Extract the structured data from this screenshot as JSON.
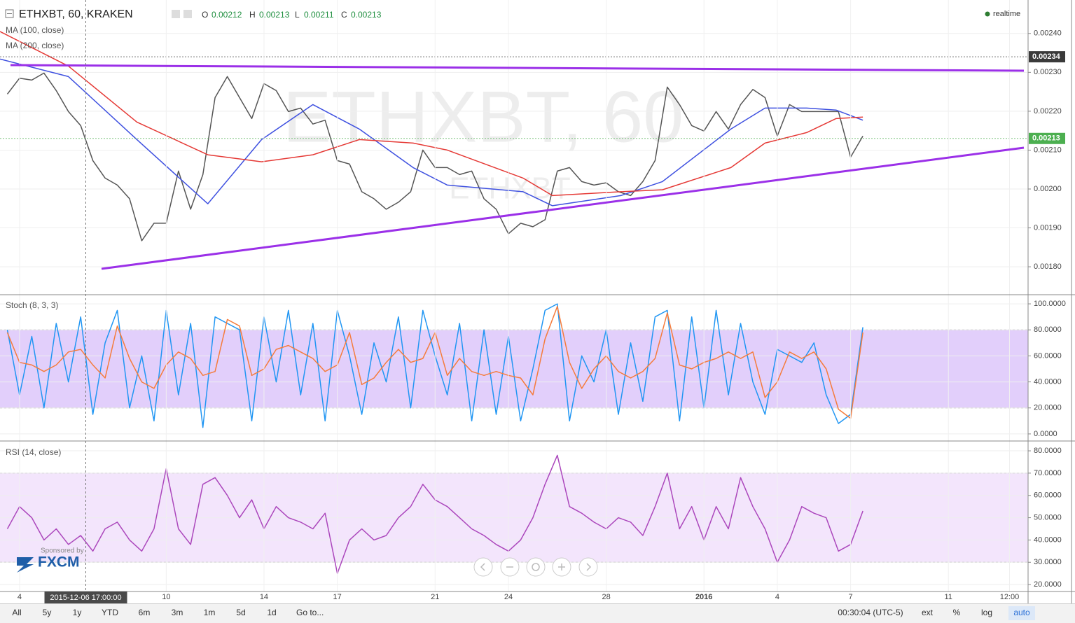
{
  "header": {
    "ohlc": [
      {
        "key": "O",
        "value": 0.00212
      },
      {
        "key": "H",
        "value": 0.00213
      },
      {
        "key": "L",
        "value": 0.00211
      },
      {
        "key": "C",
        "value": 0.00213
      }
    ],
    "status": "realtime"
  },
  "watermark": {
    "main": "ETHXBT, 60",
    "sub": "ETHXBT"
  },
  "sponsor": {
    "text": "Sponsored by",
    "brand": "FXCM"
  },
  "toolbar": {
    "ranges": [
      "All",
      "5y",
      "1y",
      "YTD",
      "6m",
      "3m",
      "1m",
      "5d",
      "1d"
    ],
    "goto": "Go to...",
    "clock": "00:30:04 (UTC-5)",
    "options": [
      "ext",
      "%",
      "log",
      "auto"
    ]
  },
  "chart_data": [
    {
      "type": "line",
      "title": "ETHXBT, 60, KRAKEN",
      "color": "#555555",
      "xlim": [
        -0.8,
        41.26
      ],
      "xticks": [
        {
          "value": 0,
          "label": "4"
        },
        {
          "value": 6,
          "label": "10"
        },
        {
          "value": 10,
          "label": "14"
        },
        {
          "value": 13,
          "label": "17"
        },
        {
          "value": 17,
          "label": "21"
        },
        {
          "value": 20,
          "label": "24"
        },
        {
          "value": 24,
          "label": "28"
        },
        {
          "value": 28,
          "label": "2016"
        },
        {
          "value": 31,
          "label": "4"
        },
        {
          "value": 34,
          "label": "7"
        },
        {
          "value": 38,
          "label": "11"
        },
        {
          "value": 40.5,
          "label": "12:00"
        }
      ],
      "crosshair": {
        "value": 2.71,
        "label": "2015-12-06 17:00:00"
      },
      "ylim": [
        0.00173,
        0.002486
      ],
      "yticks": [
        {
          "value": 0.0018,
          "label": "0.00180"
        },
        {
          "value": 0.0019,
          "label": "0.00190"
        },
        {
          "value": 0.002,
          "label": "0.00200"
        },
        {
          "value": 0.0021,
          "label": "0.00210"
        },
        {
          "value": 0.0022,
          "label": "0.00220"
        },
        {
          "value": 0.0023,
          "label": "0.00230"
        },
        {
          "value": 0.0024,
          "label": "0.00240"
        }
      ],
      "markers": [
        {
          "value": 0.00234,
          "label": "0.00234",
          "color": "#3a3a3a"
        },
        {
          "value": 0.00213,
          "label": "0.00213",
          "color": "#4caf50"
        }
      ],
      "x": [
        -0.5,
        0,
        0.5,
        1,
        1.5,
        2,
        2.5,
        3,
        3.5,
        4,
        4.5,
        5,
        5.5,
        6,
        6.5,
        7,
        7.5,
        8,
        8.5,
        9,
        9.5,
        10,
        10.5,
        11,
        11.5,
        12,
        12.5,
        13,
        13.5,
        14,
        14.5,
        15,
        15.5,
        16,
        16.5,
        17,
        17.5,
        18,
        18.5,
        19,
        19.5,
        20,
        20.5,
        21,
        21.5,
        22,
        22.5,
        23,
        23.5,
        24,
        24.5,
        25,
        25.5,
        26,
        26.5,
        27,
        27.5,
        28,
        28.5,
        29,
        29.5,
        30,
        30.5,
        31,
        31.5,
        32,
        32.5,
        33,
        33.5,
        34,
        34.5
      ],
      "values": [
        0.002244,
        0.002285,
        0.00228,
        0.002298,
        0.002253,
        0.002199,
        0.002163,
        0.002073,
        0.002028,
        0.00201,
        0.001975,
        0.001867,
        0.001912,
        0.001912,
        0.002046,
        0.001948,
        0.002037,
        0.002235,
        0.002289,
        0.002235,
        0.002181,
        0.002271,
        0.002253,
        0.002199,
        0.002208,
        0.002167,
        0.002177,
        0.002073,
        0.002064,
        0.001993,
        0.001975,
        0.001948,
        0.001966,
        0.001993,
        0.0021,
        0.002055,
        0.002055,
        0.002037,
        0.002046,
        0.001975,
        0.001948,
        0.001885,
        0.001912,
        0.001903,
        0.001921,
        0.002046,
        0.002055,
        0.002019,
        0.00201,
        0.002016,
        0.001993,
        0.001983,
        0.002019,
        0.002073,
        0.002262,
        0.002217,
        0.002163,
        0.002149,
        0.002199,
        0.002154,
        0.002217,
        0.002256,
        0.002235,
        0.002136,
        0.002217,
        0.002199,
        0.002199,
        0.002199,
        0.002199,
        0.002082,
        0.002136
      ],
      "series": [
        {
          "name": "MA (100, close)",
          "color": "#3f51e0",
          "x": [
            -0.8,
            2,
            4.8,
            7.7,
            9.9,
            12,
            13.9,
            16.1,
            17.5,
            20.6,
            21.8,
            24.6,
            26.3,
            29.1,
            30.5,
            32.2,
            33.4,
            34.5
          ],
          "values": [
            0.002334,
            0.002289,
            0.002127,
            0.001962,
            0.002127,
            0.002217,
            0.002154,
            0.002055,
            0.00201,
            0.001993,
            0.001957,
            0.001983,
            0.002019,
            0.002154,
            0.002208,
            0.002208,
            0.002203,
            0.002177
          ]
        },
        {
          "name": "MA (200, close)",
          "color": "#e53935",
          "x": [
            -0.8,
            2,
            4.8,
            7.7,
            9.9,
            12,
            13.9,
            16.1,
            17.5,
            20.6,
            21.8,
            24.6,
            26.3,
            29.1,
            30.5,
            32.2,
            33.4,
            34.5
          ],
          "values": [
            0.002405,
            0.002316,
            0.002172,
            0.002088,
            0.00207,
            0.002088,
            0.002127,
            0.002118,
            0.0021,
            0.002028,
            0.001983,
            0.001993,
            0.001998,
            0.002055,
            0.002118,
            0.002145,
            0.002181,
            0.002185
          ]
        }
      ]
    },
    {
      "type": "line",
      "title": "Stoch (8, 3, 3)",
      "ylim": [
        -4.9,
        106.5
      ],
      "band": [
        20,
        80
      ],
      "band_color": "#e2cffb",
      "yticks": [
        {
          "value": 0,
          "label": "0.0000"
        },
        {
          "value": 20,
          "label": "20.0000"
        },
        {
          "value": 40,
          "label": "40.0000"
        },
        {
          "value": 60,
          "label": "60.0000"
        },
        {
          "value": 80,
          "label": "80.0000"
        },
        {
          "value": 100,
          "label": "100.0000"
        }
      ],
      "series": [
        {
          "color": "#2196f3",
          "values": [
            80,
            30,
            75,
            20,
            85,
            40,
            90,
            15,
            70,
            95,
            20,
            60,
            10,
            95,
            30,
            85,
            5,
            90,
            85,
            80,
            10,
            90,
            40,
            95,
            30,
            85,
            10,
            95,
            60,
            15,
            70,
            40,
            90,
            20,
            95,
            60,
            30,
            85,
            10,
            80,
            15,
            75,
            10,
            50,
            95,
            100,
            10,
            60,
            40,
            80,
            15,
            70,
            25,
            90,
            95,
            10,
            90,
            20,
            95,
            30,
            85,
            40,
            15,
            65,
            60,
            55,
            70,
            30,
            8,
            15,
            82
          ]
        },
        {
          "color": "#f57c3c",
          "values": [
            78,
            55,
            53,
            48,
            53,
            63,
            65,
            53,
            43,
            83,
            58,
            40,
            35,
            53,
            63,
            58,
            45,
            48,
            88,
            83,
            45,
            50,
            65,
            68,
            63,
            58,
            48,
            53,
            78,
            38,
            43,
            55,
            65,
            55,
            58,
            78,
            45,
            58,
            48,
            45,
            48,
            45,
            43,
            30,
            73,
            98,
            55,
            35,
            50,
            60,
            48,
            43,
            48,
            58,
            93,
            53,
            50,
            55,
            58,
            63,
            58,
            63,
            28,
            40,
            63,
            58,
            63,
            50,
            19,
            12,
            78
          ]
        }
      ]
    },
    {
      "type": "line",
      "title": "RSI (14, close)",
      "ylim": [
        17.2,
        84.1
      ],
      "band": [
        30,
        70
      ],
      "band_color": "#f3e5fc",
      "yticks": [
        {
          "value": 20,
          "label": "20.0000"
        },
        {
          "value": 30,
          "label": "30.0000"
        },
        {
          "value": 40,
          "label": "40.0000"
        },
        {
          "value": 50,
          "label": "50.0000"
        },
        {
          "value": 60,
          "label": "60.0000"
        },
        {
          "value": 70,
          "label": "70.0000"
        },
        {
          "value": 80,
          "label": "80.0000"
        }
      ],
      "series": [
        {
          "color": "#ab47bc",
          "values": [
            45,
            55,
            50,
            40,
            45,
            38,
            42,
            35,
            45,
            48,
            40,
            35,
            45,
            72,
            45,
            38,
            65,
            68,
            60,
            50,
            58,
            45,
            55,
            50,
            48,
            45,
            52,
            25,
            40,
            45,
            40,
            42,
            50,
            55,
            65,
            58,
            55,
            50,
            45,
            42,
            38,
            35,
            40,
            50,
            65,
            78,
            55,
            52,
            48,
            45,
            50,
            48,
            42,
            55,
            70,
            45,
            55,
            40,
            55,
            45,
            68,
            55,
            45,
            30,
            40,
            55,
            52,
            50,
            35,
            38,
            53
          ]
        }
      ]
    }
  ]
}
